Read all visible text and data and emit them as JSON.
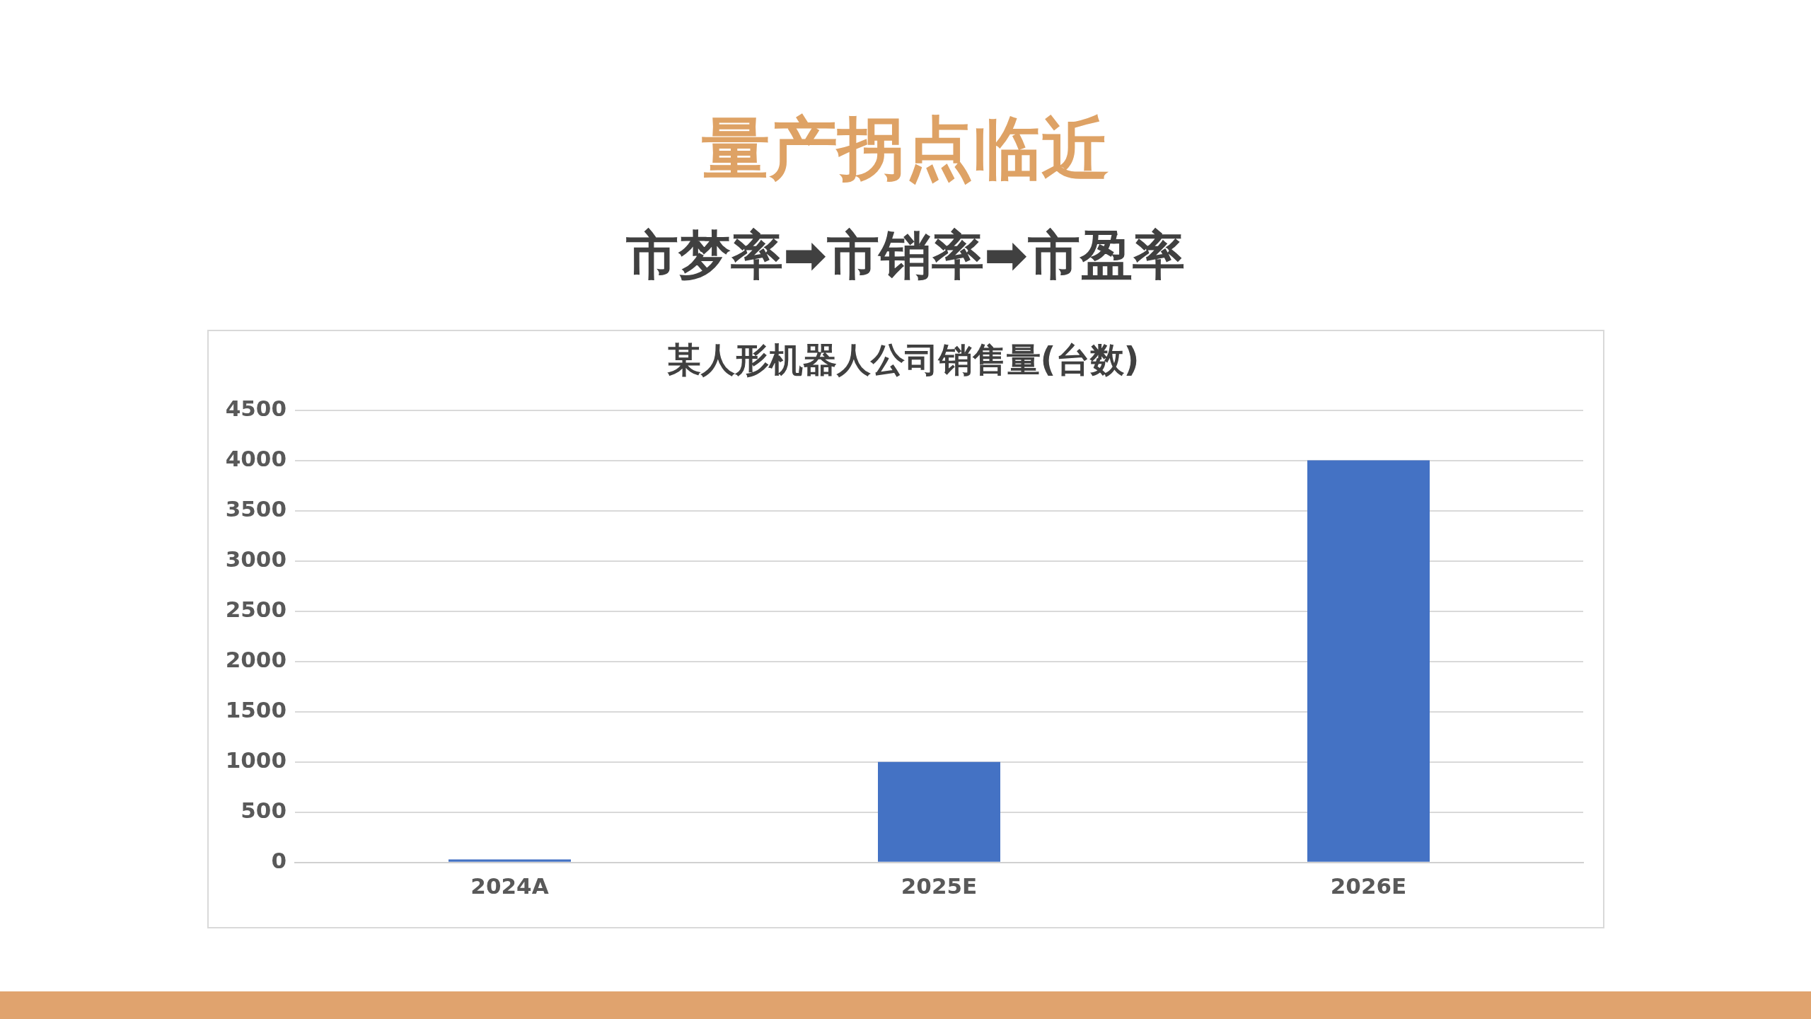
{
  "chart_data": {
    "type": "bar",
    "title": "量产拐点临近",
    "subtitle": "市梦率➡市销率➡市盈率",
    "annotations": [
      "某人形机器人公司销售量(台数)"
    ],
    "categories": [
      "2024A",
      "2025E",
      "2026E"
    ],
    "values": [
      30,
      1000,
      4000
    ],
    "color": "#4472c4",
    "ylim": [
      0,
      4500
    ],
    "yticks": [
      0,
      500,
      1000,
      1500,
      2000,
      2500,
      3000,
      3500,
      4000,
      4500
    ],
    "grid": "y",
    "legend": false
  }
}
